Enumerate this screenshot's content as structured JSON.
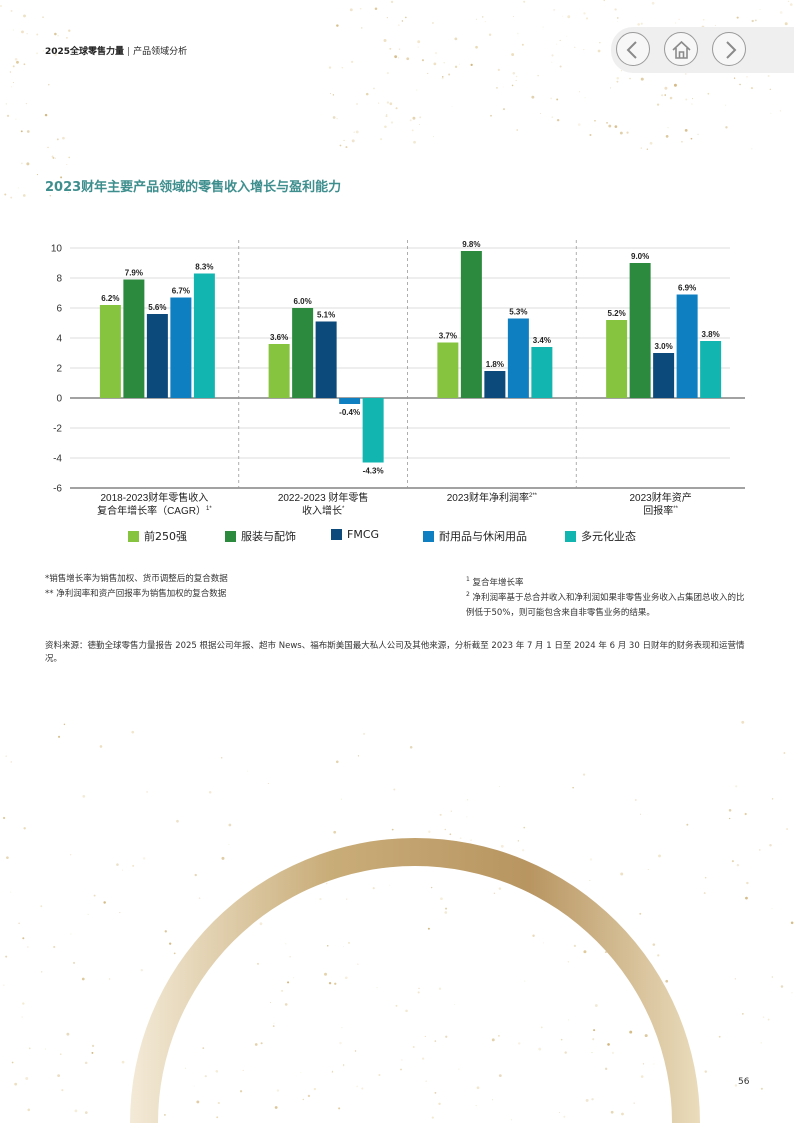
{
  "header": {
    "report": "2025全球零售力量",
    "separator": "|",
    "section": "产品领域分析"
  },
  "nav": {
    "prev_icon": "chevron-left-icon",
    "home_icon": "home-icon",
    "next_icon": "chevron-right-icon"
  },
  "page_title": "2023财年主要产品领域的零售收入增长与盈利能力",
  "chart_data": {
    "type": "bar",
    "title": "2023财年主要产品领域的零售收入增长与盈利能力",
    "ylim": [
      -6,
      10
    ],
    "yticks": [
      "10",
      "8",
      "6",
      "4",
      "2",
      "0",
      "-2",
      "-4",
      "-6"
    ],
    "grid": true,
    "legend_position": "bottom",
    "categories": [
      {
        "line1": "2018-2023财年零售收入",
        "line2": "复合年增长率（CAGR）",
        "sup": "1*"
      },
      {
        "line1": "2022-2023 财年零售",
        "line2": "收入增长",
        "sup": "*"
      },
      {
        "line1": "2023财年净利润率",
        "line2": "",
        "sup": "2**"
      },
      {
        "line1": "2023财年资产",
        "line2": "回报率",
        "sup": "**"
      }
    ],
    "series": [
      {
        "name": "前250强",
        "color": "#86c440",
        "values": [
          6.2,
          3.6,
          3.7,
          5.2
        ],
        "labels": [
          "6.2%",
          "3.6%",
          "3.7%",
          "5.2%"
        ]
      },
      {
        "name": "服装与配饰",
        "color": "#2b8a3e",
        "values": [
          7.9,
          6.0,
          9.8,
          9.0
        ],
        "labels": [
          "7.9%",
          "6.0%",
          "9.8%",
          "9.0%"
        ]
      },
      {
        "name": "FMCG",
        "color": "#0b4a7a",
        "values": [
          5.6,
          5.1,
          1.8,
          3.0
        ],
        "labels": [
          "5.6%",
          "5.1%",
          "1.8%",
          "3.0%"
        ]
      },
      {
        "name": "耐用品与休闲用品",
        "color": "#0e7fc0",
        "values": [
          6.7,
          -0.4,
          5.3,
          6.9
        ],
        "labels": [
          "6.7%",
          "-0.4%",
          "5.3%",
          "6.9%"
        ]
      },
      {
        "name": "多元化业态",
        "color": "#12b5b0",
        "values": [
          8.3,
          -4.3,
          3.4,
          3.8
        ],
        "labels": [
          "8.3%",
          "-4.3%",
          "3.4%",
          "3.8%"
        ]
      }
    ]
  },
  "notes": {
    "left1": "*销售增长率为销售加权、货币调整后的复合数据",
    "left2": "** 净利润率和资产回报率为销售加权的复合数据",
    "right1_sup": "1",
    "right1": "复合年增长率",
    "right2_sup": "2",
    "right2": "净利润率基于总合并收入和净利润如果非零售业务收入占集团总收入的比例低于50%，则可能包含来自非零售业务的结果。"
  },
  "source": "资料来源：德勤全球零售力量报告 2025 根据公司年报、超市 News、福布斯美国最大私人公司及其他来源，分析截至 2023 年 7 月 1 日至 2024 年 6 月 30 日财年的财务表现和运营情况。",
  "page_number": "56"
}
